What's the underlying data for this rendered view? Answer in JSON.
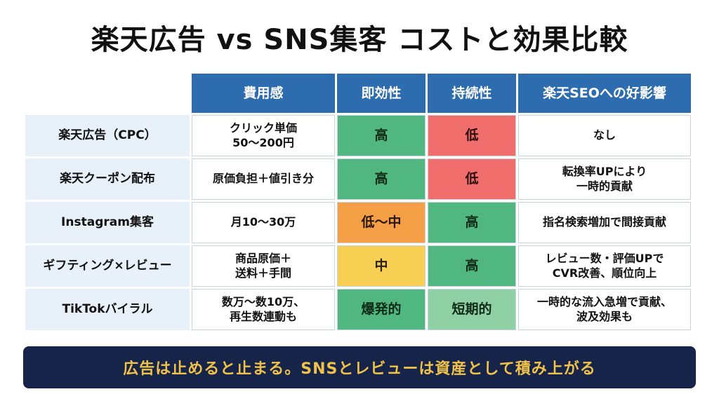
{
  "title": "楽天広告 vs SNS集客 コストと効果比較",
  "table": {
    "headers": [
      "費用感",
      "即効性",
      "持続性",
      "楽天SEOへの好影響"
    ],
    "rows": [
      {
        "label": "楽天広告（CPC）",
        "cost": "クリック単価\n50〜200円",
        "immediacy": "高",
        "sustainability": "低",
        "seo": "なし"
      },
      {
        "label": "楽天クーポン配布",
        "cost": "原価負担＋値引き分",
        "immediacy": "高",
        "sustainability": "低",
        "seo": "転換率UPにより\n一時的貢献"
      },
      {
        "label": "Instagram集客",
        "cost": "月10〜30万",
        "immediacy": "低〜中",
        "sustainability": "高",
        "seo": "指名検索増加で間接貢献"
      },
      {
        "label": "ギフティング×レビュー",
        "cost": "商品原価＋\n送料＋手間",
        "immediacy": "中",
        "sustainability": "高",
        "seo": "レビュー数・評価UPで\nCVR改善、順位向上"
      },
      {
        "label": "TikTokバイラル",
        "cost": "数万〜数10万、\n再生数連動も",
        "immediacy": "爆発的",
        "sustainability": "短期的",
        "seo": "一時的な流入急増で貢献、\n波及効果も"
      }
    ]
  },
  "colors": {
    "header": "#2e6cb0",
    "row_label_bg": "#e8f0f9",
    "high": "#4fb77f",
    "low": "#ef6d6b",
    "low_mid": "#f5a046",
    "mid": "#f7cf52",
    "short_term": "#8fd0a5",
    "banner_bg": "#16244a",
    "banner_text": "#f0c24a"
  },
  "banner": "広告は止めると止まる。SNSとレビューは資産として積み上がる"
}
